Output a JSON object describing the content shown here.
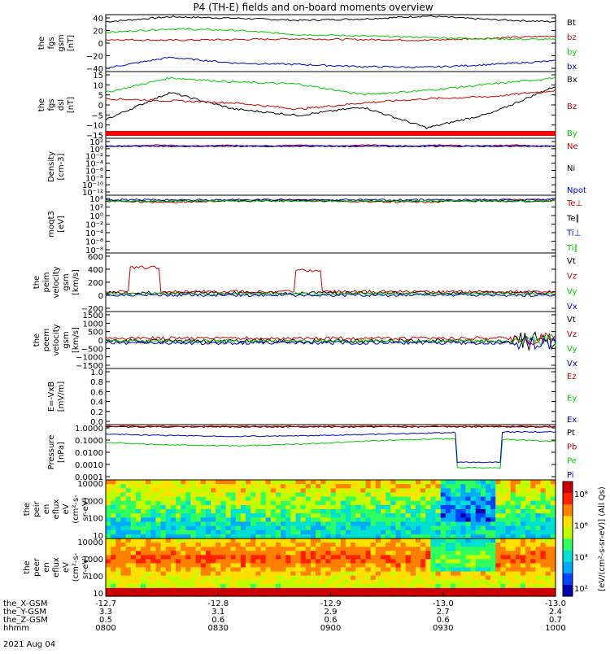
{
  "title": "P4 (TH-E) fields and on-board moments overview",
  "x_axis": {
    "rows": [
      {
        "label": "the_X-GSM",
        "values": [
          "-12.7",
          "-12.8",
          "-12.9",
          "-13.0",
          "-13.0"
        ]
      },
      {
        "label": "the_Y-GSM",
        "values": [
          "3.3",
          "3.1",
          "2.9",
          "2.7",
          "2.4"
        ]
      },
      {
        "label": "the_Z-GSM",
        "values": [
          "0.5",
          "0.6",
          "0.6",
          "0.6",
          "0.7"
        ]
      },
      {
        "label": "hhmm",
        "values": [
          "0800",
          "0830",
          "0900",
          "0930",
          "1000"
        ]
      }
    ],
    "date": "2021 Aug 04"
  },
  "chart_data": [
    {
      "type": "line",
      "ylabel": [
        "the",
        "fgs",
        "gsm",
        "[nT]"
      ],
      "yticks": [
        "40",
        "20",
        "0",
        "−20",
        "−40"
      ],
      "ylim": [
        -40,
        40
      ],
      "series": [
        {
          "name": "Bt",
          "color": "#000000",
          "values": [
            30,
            37,
            35,
            32,
            34,
            38,
            33,
            30
          ]
        },
        {
          "name": "bz",
          "color": "#cc0000",
          "values": [
            5,
            4,
            5,
            6,
            5,
            4,
            7,
            10
          ]
        },
        {
          "name": "by",
          "color": "#00cc00",
          "values": [
            15,
            20,
            18,
            12,
            10,
            8,
            6,
            5
          ]
        },
        {
          "name": "bx",
          "color": "#0000cc",
          "values": [
            -35,
            -20,
            -28,
            -30,
            -33,
            -34,
            -30,
            -25
          ]
        }
      ]
    },
    {
      "type": "line",
      "ylabel": [
        "the",
        "fgs",
        "dsl",
        "[nT]"
      ],
      "yticks": [
        "15",
        "10",
        "5",
        "0",
        "−5",
        "−10",
        "−15"
      ],
      "ylim": [
        -17,
        15
      ],
      "series": [
        {
          "name": "Bx",
          "color": "#000000",
          "values": [
            -8,
            5,
            -3,
            -6,
            -2,
            -12,
            -5,
            8
          ]
        },
        {
          "name": "Bz",
          "color": "#cc0000",
          "values": [
            2,
            1,
            0,
            -3,
            0,
            2,
            3,
            6
          ]
        },
        {
          "name": "By",
          "color": "#00cc00",
          "values": [
            5,
            12,
            10,
            9,
            4,
            6,
            9,
            12
          ]
        }
      ]
    },
    {
      "type": "line",
      "ylabel": [
        "Density",
        "[cm-3]"
      ],
      "yticks": [
        "10²",
        "10⁰",
        "10⁻²",
        "10⁻⁴",
        "10⁻⁶",
        "10⁻⁸",
        "10⁻¹⁰",
        "10⁻¹²"
      ],
      "series": [
        {
          "name": "Ne",
          "color": "#cc0000"
        },
        {
          "name": "Ni",
          "color": "#000000"
        },
        {
          "name": "Npot",
          "color": "#0000cc"
        }
      ]
    },
    {
      "type": "line",
      "ylabel": [
        "moqt3",
        "[eV]"
      ],
      "yticks": [
        "10⁴",
        "10²",
        "10⁰",
        "10⁻²",
        "10⁻⁴",
        "10⁻⁶",
        "10⁻⁸"
      ],
      "series": [
        {
          "name": "Te⊥",
          "color": "#cc0000"
        },
        {
          "name": "Te∥",
          "color": "#000000"
        },
        {
          "name": "Ti⊥",
          "color": "#0000cc"
        },
        {
          "name": "Ti∥",
          "color": "#00cc00"
        }
      ]
    },
    {
      "type": "line",
      "ylabel": [
        "the",
        "peim",
        "velocity",
        "gsm",
        "[km/s]"
      ],
      "yticks": [
        "600",
        "400",
        "200",
        "0",
        "−200"
      ],
      "ylim": [
        -200,
        600
      ],
      "series": [
        {
          "name": "Vt",
          "color": "#000000"
        },
        {
          "name": "Vz",
          "color": "#cc0000"
        },
        {
          "name": "Vy",
          "color": "#00cc00"
        },
        {
          "name": "Vx",
          "color": "#0000cc"
        }
      ]
    },
    {
      "type": "line",
      "ylabel": [
        "the",
        "peem",
        "velocity",
        "gsm",
        "[km/s]"
      ],
      "yticks": [
        "1500",
        "1000",
        "500",
        "0",
        "−500",
        "−1000",
        "−1500"
      ],
      "ylim": [
        -1500,
        1500
      ],
      "series": [
        {
          "name": "Vt",
          "color": "#000000"
        },
        {
          "name": "Vz",
          "color": "#cc0000"
        },
        {
          "name": "Vy",
          "color": "#00cc00"
        },
        {
          "name": "Vx",
          "color": "#0000cc"
        }
      ]
    },
    {
      "type": "line",
      "ylabel": [
        "E=-VxB",
        "[mV/m]"
      ],
      "yticks": [
        "1.0",
        "0.8",
        "0.6",
        "0.4",
        "0.2",
        "0.0"
      ],
      "ylim": [
        0,
        1
      ],
      "series": [
        {
          "name": "Ez",
          "color": "#cc0000"
        },
        {
          "name": "Ey",
          "color": "#00cc00"
        },
        {
          "name": "Ex",
          "color": "#0000cc"
        }
      ]
    },
    {
      "type": "line",
      "ylabel": [
        "Pressure",
        "[nPa]"
      ],
      "yticks": [
        "1.0000",
        "0.1000",
        "0.0100",
        "0.0010",
        "0.0001"
      ],
      "series": [
        {
          "name": "Pt",
          "color": "#000000"
        },
        {
          "name": "Pb",
          "color": "#cc0000"
        },
        {
          "name": "Pe",
          "color": "#00cc00"
        },
        {
          "name": "Pi",
          "color": "#0000cc"
        }
      ]
    },
    {
      "type": "heatmap",
      "ylabel": [
        "the",
        "peir",
        "en",
        "eflux",
        "eV",
        "(cm²-s-",
        "sr-eV)"
      ],
      "yticks": [
        "10000",
        "1000",
        "100",
        "10"
      ]
    },
    {
      "type": "heatmap",
      "ylabel": [
        "the",
        "peer",
        "en",
        "eflux",
        "eV",
        "(cm²-s-",
        "sr-eV)"
      ],
      "yticks": [
        "10000",
        "1000",
        "100",
        "10"
      ]
    }
  ],
  "colorbar": {
    "ticks": [
      "10⁸",
      "10⁶",
      "10⁴",
      "10²"
    ],
    "label": "[eV/(cm²-s-sr-eV)] (All Qs)"
  }
}
